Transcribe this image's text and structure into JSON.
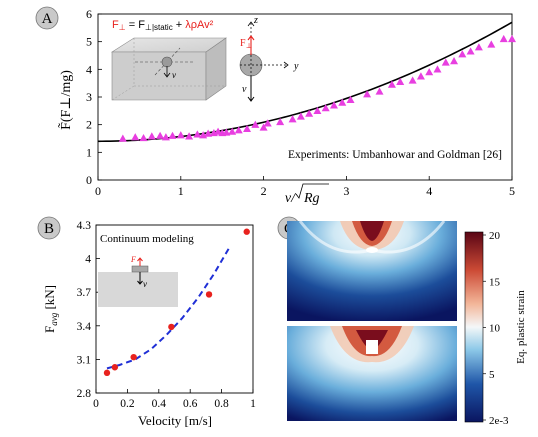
{
  "panels": {
    "a": {
      "badge": "A",
      "formula_lhs": "F",
      "formula_sub": "⊥",
      "formula_mid": " = F",
      "formula_mid_sub": "⊥|static",
      "formula_plus": " + ",
      "formula_rhs": "λρAv²",
      "inset_v": "v",
      "inset_z": "z",
      "inset_y": "y",
      "inset_F": "F",
      "inset_F_sub": "⊥",
      "inset_v2": "v",
      "annotation": "Experiments: Umbanhowar and Goldman [26]"
    },
    "b": {
      "badge": "B",
      "annotation": "Continuum modeling",
      "inset_F": "F",
      "inset_v": "v"
    },
    "c": {
      "badge": "C",
      "colorbar_label": "Eq. plastic strain"
    }
  },
  "colors": {
    "markers": "#e83fe0",
    "fit_line": "#000000",
    "points_b": "#e8221e",
    "dash_b": "#1f2fd6",
    "red_text": "#e8221e"
  },
  "chart_data": [
    {
      "type": "scatter",
      "panel": "A",
      "xlabel_main": "v/",
      "xlabel_root": "Rg",
      "ylabel": "F̃(F⊥/mg)",
      "xlim": [
        0,
        5
      ],
      "ylim": [
        0,
        6
      ],
      "xticks": [
        "0",
        "1",
        "2",
        "3",
        "4",
        "5"
      ],
      "yticks": [
        "0",
        "1",
        "2",
        "3",
        "4",
        "5",
        "6"
      ],
      "grid": false,
      "series": [
        {
          "kind": "markers",
          "x": [
            0.3,
            0.45,
            0.55,
            0.65,
            0.75,
            0.82,
            0.9,
            1.0,
            1.1,
            1.2,
            1.27,
            1.33,
            1.4,
            1.45,
            1.5,
            1.55,
            1.62,
            1.7,
            1.8,
            1.9,
            2.0,
            2.05,
            2.2,
            2.35,
            2.45,
            2.55,
            2.65,
            2.75,
            2.85,
            2.95,
            3.05,
            3.25,
            3.4,
            3.55,
            3.65,
            3.8,
            3.9,
            4.0,
            4.1,
            4.2,
            4.3,
            4.4,
            4.5,
            4.6,
            4.75,
            4.9,
            5.0
          ],
          "y": [
            1.5,
            1.55,
            1.52,
            1.58,
            1.6,
            1.55,
            1.6,
            1.62,
            1.58,
            1.65,
            1.62,
            1.68,
            1.7,
            1.75,
            1.7,
            1.72,
            1.75,
            1.8,
            1.85,
            2.0,
            1.9,
            2.05,
            2.1,
            2.2,
            2.3,
            2.4,
            2.5,
            2.6,
            2.7,
            2.8,
            2.9,
            3.1,
            3.2,
            3.45,
            3.55,
            3.6,
            3.75,
            3.9,
            4.0,
            4.25,
            4.3,
            4.55,
            4.65,
            4.8,
            4.9,
            5.1,
            5.1
          ]
        },
        {
          "kind": "line",
          "model": "quadratic",
          "y0": 1.4,
          "coef": 0.172
        }
      ]
    },
    {
      "type": "scatter",
      "panel": "B",
      "xlabel": "Velocity [m/s]",
      "ylabel_main": "F",
      "ylabel_sub": "avg",
      "ylabel_unit": " [kN]",
      "xlim": [
        0,
        1
      ],
      "ylim": [
        2.8,
        4.3
      ],
      "xticks": [
        "0",
        "0.2",
        "0.4",
        "0.6",
        "0.8",
        "1"
      ],
      "yticks": [
        "2.8",
        "3.1",
        "3.4",
        "3.7",
        "4",
        "4.3"
      ],
      "grid": false,
      "series": [
        {
          "kind": "markers",
          "x": [
            0.07,
            0.12,
            0.24,
            0.48,
            0.72,
            0.96
          ],
          "y": [
            2.98,
            3.03,
            3.12,
            3.39,
            3.68,
            4.24
          ]
        },
        {
          "kind": "dashed-line",
          "x": [
            0.07,
            0.15,
            0.25,
            0.35,
            0.45,
            0.55,
            0.65,
            0.75,
            0.85
          ],
          "y": [
            3.02,
            3.05,
            3.1,
            3.19,
            3.32,
            3.47,
            3.65,
            3.86,
            4.1
          ]
        }
      ]
    },
    {
      "type": "heatmap",
      "panel": "C",
      "colorbar_ticks": [
        "20",
        "15",
        "10",
        "5",
        "2e-3"
      ],
      "colorbar_range": [
        0.002,
        20
      ]
    }
  ]
}
